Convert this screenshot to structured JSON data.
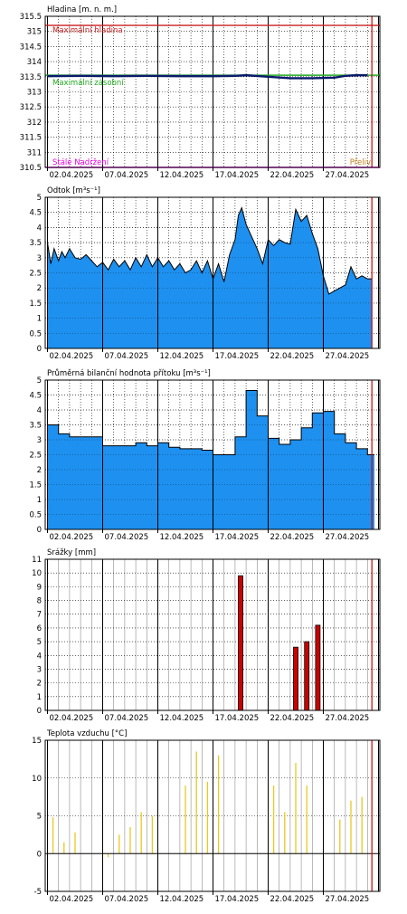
{
  "colors": {
    "fill": "#1e90ef",
    "stroke": "#000000",
    "grid": "#000000",
    "today": "#cc0000",
    "rain": "#cc0000",
    "temp": "#e8c820",
    "max_level": "#cc2222",
    "max_reg": "#22aa22",
    "stale": "#ee00ee",
    "level_line": "#0a1a6a",
    "brown": "#c08020"
  },
  "x_dates": [
    "02.04.2025",
    "07.04.2025",
    "12.04.2025",
    "17.04.2025",
    "22.04.2025",
    "27.04.2025"
  ],
  "chart_data": [
    {
      "type": "line",
      "title": "Hladina [m. n. m.]",
      "ylim": [
        310.5,
        315.5
      ],
      "y_ticks": [
        310.5,
        311,
        311.5,
        312,
        312.5,
        313,
        313.5,
        314,
        314.5,
        315,
        315.5
      ],
      "reference_lines": [
        {
          "label": "Maximální hladina",
          "value": 315.2
        },
        {
          "label": "Maximální zásobní",
          "value": 313.55
        },
        {
          "label": "Stálé Nadržení",
          "value": 310.5
        },
        {
          "label": "Přeliv",
          "value": 310.5
        }
      ],
      "series": [
        {
          "x": [
            0,
            3,
            6,
            9,
            12,
            15,
            17,
            18,
            20,
            22,
            24,
            26,
            27,
            28,
            29
          ],
          "values": [
            313.52,
            313.53,
            313.52,
            313.53,
            313.52,
            313.52,
            313.53,
            313.55,
            313.5,
            313.45,
            313.45,
            313.47,
            313.53,
            313.55,
            313.55
          ]
        }
      ]
    },
    {
      "type": "area",
      "title": "Odtok [m³s⁻¹]",
      "ylim": [
        0,
        5
      ],
      "y_ticks": [
        0,
        0.5,
        1,
        1.5,
        2,
        2.5,
        3,
        3.5,
        4,
        4.5,
        5
      ],
      "series": [
        {
          "x": [
            0,
            0.3,
            0.6,
            1,
            1.3,
            1.6,
            2,
            2.5,
            3,
            3.5,
            4,
            4.5,
            5,
            5.5,
            6,
            6.5,
            7,
            7.5,
            8,
            8.5,
            9,
            9.5,
            10,
            10.5,
            11,
            11.5,
            12,
            12.5,
            13,
            13.5,
            14,
            14.5,
            15,
            15.5,
            16,
            16.5,
            17,
            17.3,
            17.6,
            18,
            18.5,
            19,
            19.5,
            20,
            20.5,
            21,
            21.5,
            22,
            22.5,
            23,
            23.5,
            24,
            24.5,
            25,
            25.5,
            26,
            26.5,
            27,
            27.5,
            28,
            28.5,
            29,
            29.4
          ],
          "values": [
            3.5,
            2.8,
            3.3,
            2.9,
            3.2,
            3.0,
            3.3,
            3.0,
            2.95,
            3.1,
            2.9,
            2.7,
            2.85,
            2.6,
            2.95,
            2.7,
            2.9,
            2.6,
            3.0,
            2.7,
            3.1,
            2.7,
            3.0,
            2.7,
            2.9,
            2.6,
            2.8,
            2.5,
            2.6,
            2.9,
            2.5,
            2.9,
            2.3,
            2.8,
            2.2,
            3.1,
            3.6,
            4.4,
            4.65,
            4.1,
            3.7,
            3.3,
            2.8,
            3.6,
            3.4,
            3.6,
            3.5,
            3.45,
            4.6,
            4.2,
            4.4,
            3.8,
            3.3,
            2.4,
            1.8,
            1.9,
            2.0,
            2.1,
            2.7,
            2.3,
            2.4,
            2.3,
            2.3
          ]
        }
      ]
    },
    {
      "type": "area",
      "title": "Průměrná bilanční hodnota přítoku   [m³s⁻¹]",
      "ylim": [
        0,
        5
      ],
      "y_ticks": [
        0,
        0.5,
        1,
        1.5,
        2,
        2.5,
        3,
        3.5,
        4,
        4.5,
        5
      ],
      "series": [
        {
          "x": [
            0,
            1,
            2,
            3,
            4,
            5,
            6,
            7,
            8,
            9,
            10,
            11,
            12,
            13,
            14,
            15,
            16,
            17,
            18,
            19,
            20,
            21,
            22,
            23,
            24,
            25,
            26,
            27,
            28,
            29
          ],
          "values": [
            3.5,
            3.2,
            3.1,
            3.1,
            3.1,
            2.8,
            2.8,
            2.8,
            2.9,
            2.8,
            2.9,
            2.75,
            2.7,
            2.7,
            2.65,
            2.5,
            2.5,
            3.1,
            4.65,
            3.8,
            3.05,
            2.85,
            3.0,
            3.4,
            3.9,
            3.95,
            3.2,
            2.9,
            2.7,
            2.5
          ]
        }
      ]
    },
    {
      "type": "bar",
      "title": "Srážky [mm]",
      "ylim": [
        0,
        11
      ],
      "y_ticks": [
        0,
        1,
        2,
        3,
        4,
        5,
        6,
        7,
        8,
        9,
        10,
        11
      ],
      "series": [
        {
          "x": [
            17,
            22,
            23,
            24
          ],
          "values": [
            9.8,
            4.6,
            5.0,
            6.2
          ]
        }
      ]
    },
    {
      "type": "bar",
      "title": "Teplota vzduchu [°C]",
      "ylim": [
        -5,
        15
      ],
      "y_ticks": [
        -5,
        0,
        5,
        10,
        15
      ],
      "series": [
        {
          "x": [
            0,
            1,
            2,
            5,
            6,
            7,
            8,
            9,
            12,
            13,
            14,
            15,
            20,
            21,
            22,
            23,
            26,
            27,
            28
          ],
          "values": [
            4.8,
            1.5,
            2.8,
            -0.5,
            2.5,
            3.5,
            5.5,
            5.0,
            9.0,
            13.5,
            9.5,
            13.0,
            9.0,
            5.5,
            12.0,
            9.0,
            4.5,
            7.0,
            7.5
          ]
        }
      ]
    }
  ]
}
